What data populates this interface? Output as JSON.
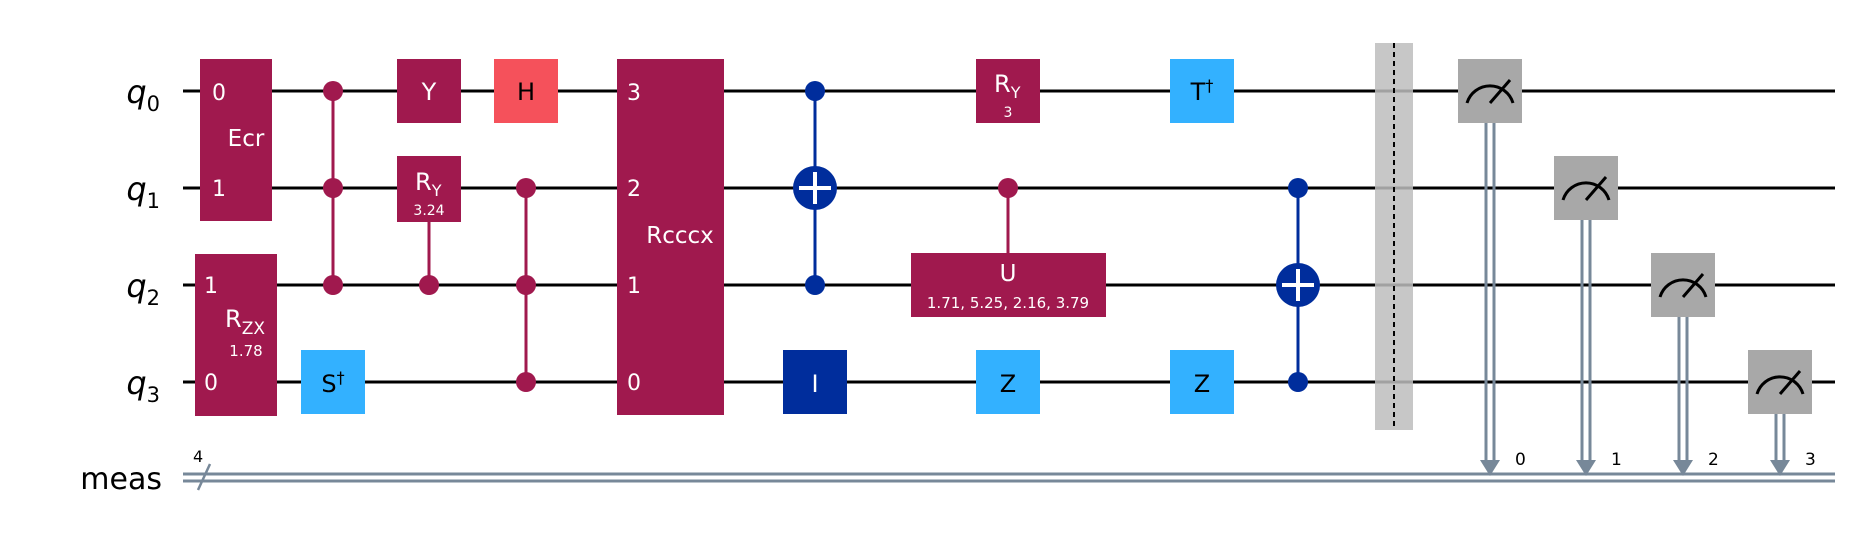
{
  "circuit": {
    "qubits": [
      {
        "name": "q",
        "index": "0"
      },
      {
        "name": "q",
        "index": "1"
      },
      {
        "name": "q",
        "index": "2"
      },
      {
        "name": "q",
        "index": "3"
      }
    ],
    "creg": {
      "name": "meas",
      "size": "4",
      "bits": [
        "0",
        "1",
        "2",
        "3"
      ]
    },
    "colors": {
      "wire": "#000000",
      "creg_wire": "#778899",
      "multi_gate": "#A0194E",
      "h_gate": "#F5515B",
      "clifford_gate": "#33B1FF",
      "pauli_i": "#002D9C",
      "cnot": "#002D9C",
      "barrier": "#BDBDBD",
      "measure": "#A8A8A8"
    },
    "gates": {
      "ecr": {
        "name": "Ecr",
        "q0": "0",
        "q1": "1"
      },
      "rzx": {
        "name": "R",
        "sub": "ZX",
        "param": "1.78",
        "q2": "1",
        "q3": "0"
      },
      "sdg": {
        "name": "S",
        "sup": "†"
      },
      "y": {
        "name": "Y"
      },
      "ry1": {
        "name": "R",
        "sub": "Y",
        "param": "3.24"
      },
      "h": {
        "name": "H"
      },
      "rcccx": {
        "name": "Rcccx",
        "q0": "3",
        "q1": "2",
        "q2": "1",
        "q3": "0"
      },
      "id": {
        "name": "I"
      },
      "ry2": {
        "name": "R",
        "sub": "Y",
        "param": "3"
      },
      "u": {
        "name": "U",
        "params": "1.71, 5.25, 2.16, 3.79"
      },
      "z1": {
        "name": "Z"
      },
      "tdg": {
        "name": "T",
        "sup": "†"
      },
      "z2": {
        "name": "Z"
      }
    }
  }
}
